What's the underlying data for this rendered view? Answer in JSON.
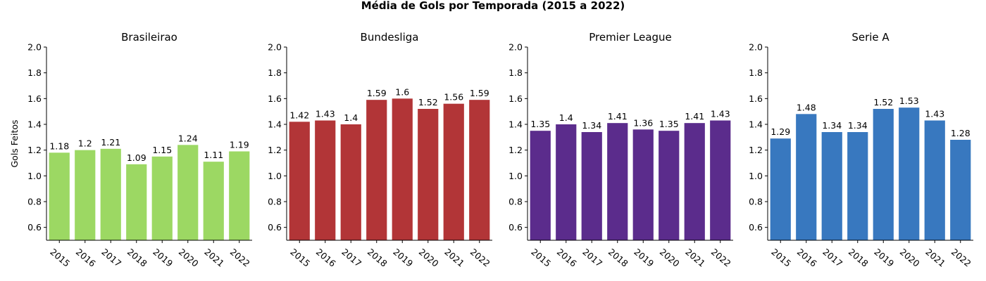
{
  "figure": {
    "title": "Média de Gols por Temporada (2015 a 2022)"
  },
  "chart_data": [
    {
      "type": "bar",
      "title": "Brasileirao",
      "xlabel": "",
      "ylabel": "Gols Feitos",
      "categories": [
        "2015",
        "2016",
        "2017",
        "2018",
        "2019",
        "2020",
        "2021",
        "2022"
      ],
      "values": [
        1.18,
        1.2,
        1.21,
        1.09,
        1.15,
        1.24,
        1.11,
        1.19
      ],
      "ylim": [
        0.5,
        2.0
      ],
      "yticks": [
        "0.6",
        "0.8",
        "1.0",
        "1.2",
        "1.4",
        "1.6",
        "1.8",
        "2.0"
      ],
      "color": "#9cd863",
      "grid": false
    },
    {
      "type": "bar",
      "title": "Bundesliga",
      "xlabel": "",
      "ylabel": "",
      "categories": [
        "2015",
        "2016",
        "2017",
        "2018",
        "2019",
        "2020",
        "2021",
        "2022"
      ],
      "values": [
        1.42,
        1.43,
        1.4,
        1.59,
        1.6,
        1.52,
        1.56,
        1.59
      ],
      "ylim": [
        0.5,
        2.0
      ],
      "yticks": [
        "0.6",
        "0.8",
        "1.0",
        "1.2",
        "1.4",
        "1.6",
        "1.8",
        "2.0"
      ],
      "color": "#b23537",
      "grid": false
    },
    {
      "type": "bar",
      "title": "Premier League",
      "xlabel": "",
      "ylabel": "",
      "categories": [
        "2015",
        "2016",
        "2017",
        "2018",
        "2019",
        "2020",
        "2021",
        "2022"
      ],
      "values": [
        1.35,
        1.4,
        1.34,
        1.41,
        1.36,
        1.35,
        1.41,
        1.43
      ],
      "ylim": [
        0.5,
        2.0
      ],
      "yticks": [
        "0.6",
        "0.8",
        "1.0",
        "1.2",
        "1.4",
        "1.6",
        "1.8",
        "2.0"
      ],
      "color": "#5b2c8c",
      "grid": false
    },
    {
      "type": "bar",
      "title": "Serie A",
      "xlabel": "",
      "ylabel": "",
      "categories": [
        "2015",
        "2016",
        "2017",
        "2018",
        "2019",
        "2020",
        "2021",
        "2022"
      ],
      "values": [
        1.29,
        1.48,
        1.34,
        1.34,
        1.52,
        1.53,
        1.43,
        1.28
      ],
      "ylim": [
        0.5,
        2.0
      ],
      "yticks": [
        "0.6",
        "0.8",
        "1.0",
        "1.2",
        "1.4",
        "1.6",
        "1.8",
        "2.0"
      ],
      "color": "#3878bf",
      "grid": false
    }
  ]
}
